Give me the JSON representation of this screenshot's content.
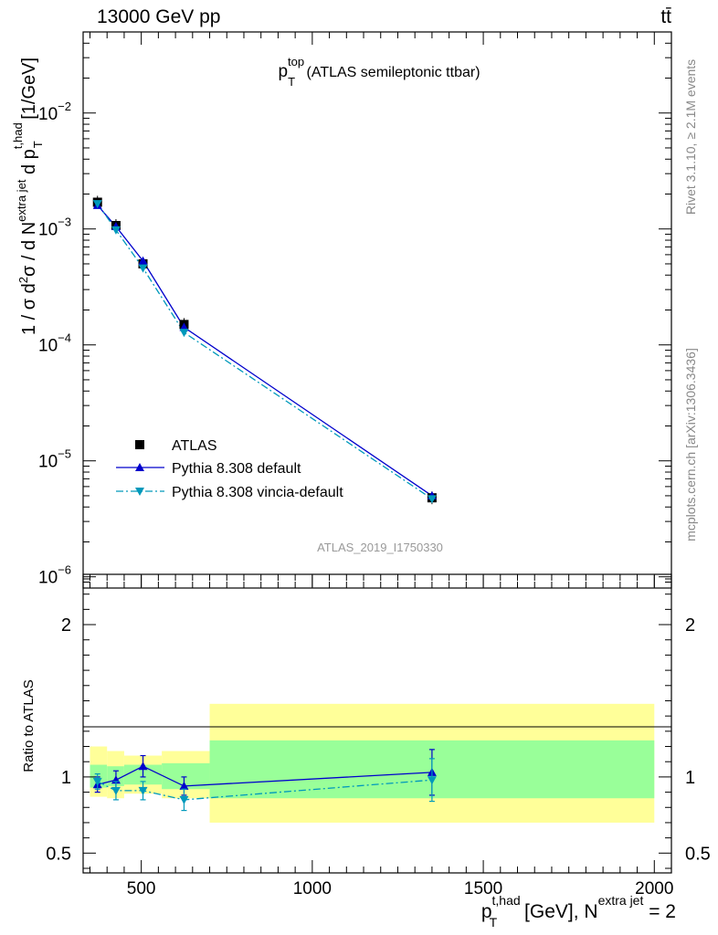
{
  "header": {
    "energy_label": "13000 GeV pp",
    "process_label": "tt̄"
  },
  "side_labels": {
    "rivet": "Rivet 3.1.10, ≥ 2.1M events",
    "mcplots": "mcplots.cern.ch [arXiv:1306.3436]"
  },
  "analysis_id": "ATLAS_2019_I1750330",
  "chart_data": [
    {
      "type": "line",
      "panel": "main",
      "title_main": "p",
      "title_sup": "top",
      "title_sub": "T",
      "title_rest": " (ATLAS semileptonic ttbar)",
      "ylabel": "1 / σ d²σ / d N^{extra jet} d p_T^{t,had} [1/GeV]",
      "yscale": "log",
      "ylim": [
        8e-07,
        0.05
      ],
      "xlim": [
        330,
        2050
      ],
      "y_ticks": [
        {
          "value": 1e-06,
          "mant": "10",
          "exp": "−6"
        },
        {
          "value": 1e-05,
          "mant": "10",
          "exp": "−5"
        },
        {
          "value": 0.0001,
          "mant": "10",
          "exp": "−4"
        },
        {
          "value": 0.001,
          "mant": "10",
          "exp": "−3"
        },
        {
          "value": 0.01,
          "mant": "10",
          "exp": "−2"
        }
      ],
      "legend_position": "bottom-left",
      "series": [
        {
          "name": "ATLAS",
          "color": "#000000",
          "marker": "square",
          "points": [
            {
              "x": 372,
              "y": 0.0017,
              "xlo": 350,
              "xhi": 400
            },
            {
              "x": 426,
              "y": 0.00107,
              "xlo": 400,
              "xhi": 450
            },
            {
              "x": 505,
              "y": 0.0005,
              "xlo": 450,
              "xhi": 560
            },
            {
              "x": 625,
              "y": 0.00015,
              "xlo": 560,
              "xhi": 700
            },
            {
              "x": 1350,
              "y": 4.8e-06,
              "xlo": 700,
              "xhi": 2000
            }
          ]
        },
        {
          "name": "Pythia 8.308 default",
          "color": "#0000cc",
          "marker": "triangle-up",
          "dash": "solid",
          "points": [
            {
              "x": 372,
              "y": 0.0016
            },
            {
              "x": 426,
              "y": 0.00105
            },
            {
              "x": 505,
              "y": 0.00053
            },
            {
              "x": 625,
              "y": 0.000142
            },
            {
              "x": 1350,
              "y": 5e-06
            }
          ]
        },
        {
          "name": "Pythia 8.308 vincia-default",
          "color": "#0099bb",
          "marker": "triangle-down",
          "dash": "dashdot",
          "points": [
            {
              "x": 372,
              "y": 0.00165
            },
            {
              "x": 426,
              "y": 0.00098
            },
            {
              "x": 505,
              "y": 0.00046
            },
            {
              "x": 625,
              "y": 0.000128
            },
            {
              "x": 1350,
              "y": 4.7e-06
            }
          ]
        }
      ]
    },
    {
      "type": "line",
      "panel": "ratio",
      "ylabel": "Ratio to ATLAS",
      "xlabel_main": "p",
      "xlabel_sup": "t,had",
      "xlabel_sub": "T",
      "xlabel_rest": " [GeV], N",
      "xlabel_sup2": "extra jet",
      "xlabel_tail": " = 2",
      "ylim": [
        0.37,
        2.33
      ],
      "xlim": [
        330,
        2050
      ],
      "y_ticks": [
        {
          "value": 0.5,
          "label": "0.5"
        },
        {
          "value": 1,
          "label": "1"
        },
        {
          "value": 2,
          "label": "2"
        }
      ],
      "x_ticks": [
        {
          "value": 500,
          "label": "500"
        },
        {
          "value": 1000,
          "label": "1000"
        },
        {
          "value": 1500,
          "label": "1500"
        },
        {
          "value": 2000,
          "label": "2000"
        }
      ],
      "uncertainty_bands": [
        {
          "xlo": 350,
          "xhi": 400,
          "stat_lo": 0.93,
          "stat_hi": 1.08,
          "tot_lo": 0.87,
          "tot_hi": 1.2
        },
        {
          "xlo": 400,
          "xhi": 450,
          "stat_lo": 0.94,
          "stat_hi": 1.07,
          "tot_lo": 0.86,
          "tot_hi": 1.17
        },
        {
          "xlo": 450,
          "xhi": 560,
          "stat_lo": 0.95,
          "stat_hi": 1.08,
          "tot_lo": 0.89,
          "tot_hi": 1.14
        },
        {
          "xlo": 560,
          "xhi": 700,
          "stat_lo": 0.92,
          "stat_hi": 1.09,
          "tot_lo": 0.86,
          "tot_hi": 1.17
        },
        {
          "xlo": 700,
          "xhi": 2000,
          "stat_lo": 0.86,
          "stat_hi": 1.24,
          "tot_lo": 0.7,
          "tot_hi": 1.48
        }
      ],
      "series": [
        {
          "name": "Pythia 8.308 default",
          "color": "#0000cc",
          "marker": "triangle-up",
          "dash": "solid",
          "points": [
            {
              "x": 372,
              "y": 0.95,
              "err": 0.05
            },
            {
              "x": 426,
              "y": 0.98,
              "err": 0.06
            },
            {
              "x": 505,
              "y": 1.07,
              "err": 0.07
            },
            {
              "x": 625,
              "y": 0.94,
              "err": 0.06
            },
            {
              "x": 1350,
              "y": 1.03,
              "err": 0.15
            }
          ]
        },
        {
          "name": "Pythia 8.308 vincia-default",
          "color": "#0099bb",
          "marker": "triangle-down",
          "dash": "dashdot",
          "points": [
            {
              "x": 372,
              "y": 0.97,
              "err": 0.05
            },
            {
              "x": 426,
              "y": 0.91,
              "err": 0.06
            },
            {
              "x": 505,
              "y": 0.91,
              "err": 0.06
            },
            {
              "x": 625,
              "y": 0.85,
              "err": 0.07
            },
            {
              "x": 1350,
              "y": 0.98,
              "err": 0.14
            }
          ]
        }
      ]
    }
  ],
  "colors": {
    "stat_band": "#99ff99",
    "total_band": "#ffff99"
  }
}
